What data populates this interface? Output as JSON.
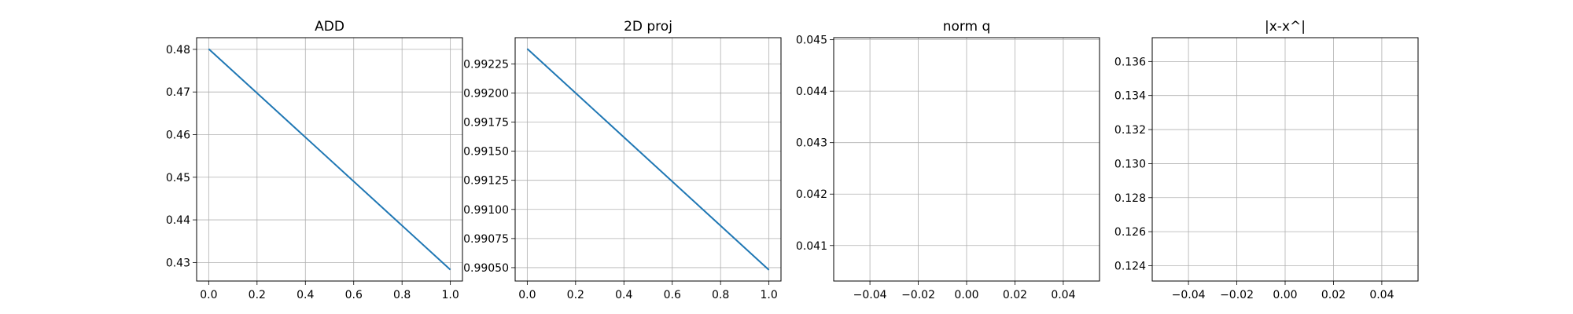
{
  "chart_data": [
    {
      "type": "line",
      "title": "ADD",
      "xlabel": "",
      "ylabel": "",
      "grid": true,
      "color": "#1f77b4",
      "x": [
        0.0,
        1.0
      ],
      "y": [
        0.4801,
        0.4283
      ],
      "xlim": [
        -0.05,
        1.05
      ],
      "ylim": [
        0.42565,
        0.48274
      ],
      "xticks": [
        0.0,
        0.2,
        0.4,
        0.6,
        0.8,
        1.0
      ],
      "xtick_labels": [
        "0.0",
        "0.2",
        "0.4",
        "0.6",
        "0.8",
        "1.0"
      ],
      "yticks": [
        0.43,
        0.44,
        0.45,
        0.46,
        0.47,
        0.48
      ],
      "ytick_labels": [
        "0.43",
        "0.44",
        "0.45",
        "0.46",
        "0.47",
        "0.48"
      ]
    },
    {
      "type": "line",
      "title": "2D proj",
      "xlabel": "",
      "ylabel": "",
      "grid": true,
      "color": "#1f77b4",
      "x": [
        0.0,
        1.0
      ],
      "y": [
        0.99238,
        0.99048
      ],
      "xlim": [
        -0.05,
        1.05
      ],
      "ylim": [
        0.990385,
        0.992475
      ],
      "xticks": [
        0.0,
        0.2,
        0.4,
        0.6,
        0.8,
        1.0
      ],
      "xtick_labels": [
        "0.0",
        "0.2",
        "0.4",
        "0.6",
        "0.8",
        "1.0"
      ],
      "yticks": [
        0.9905,
        0.99075,
        0.991,
        0.99125,
        0.9915,
        0.99175,
        0.992,
        0.99225
      ],
      "ytick_labels": [
        "0.99050",
        "0.99075",
        "0.99100",
        "0.99125",
        "0.99150",
        "0.99175",
        "0.99200",
        "0.99225"
      ]
    },
    {
      "type": "line",
      "title": "norm q",
      "xlabel": "",
      "ylabel": "",
      "grid": true,
      "color": "#1f77b4",
      "x": [],
      "y": [],
      "xlim": [
        -0.055,
        0.055
      ],
      "ylim": [
        0.04031,
        0.04504
      ],
      "xticks": [
        -0.04,
        -0.02,
        0.0,
        0.02,
        0.04
      ],
      "xtick_labels": [
        "−0.04",
        "−0.02",
        "0.00",
        "0.02",
        "0.04"
      ],
      "yticks": [
        0.041,
        0.042,
        0.043,
        0.044,
        0.045
      ],
      "ytick_labels": [
        "0.041",
        "0.042",
        "0.043",
        "0.044",
        "0.045"
      ]
    },
    {
      "type": "line",
      "title": "|x-x^|",
      "xlabel": "",
      "ylabel": "",
      "grid": true,
      "color": "#1f77b4",
      "x": [],
      "y": [],
      "xlim": [
        -0.055,
        0.055
      ],
      "ylim": [
        0.1231,
        0.1374
      ],
      "xticks": [
        -0.04,
        -0.02,
        0.0,
        0.02,
        0.04
      ],
      "xtick_labels": [
        "−0.04",
        "−0.02",
        "0.00",
        "0.02",
        "0.04"
      ],
      "yticks": [
        0.124,
        0.126,
        0.128,
        0.13,
        0.132,
        0.134,
        0.136
      ],
      "ytick_labels": [
        "0.124",
        "0.126",
        "0.128",
        "0.130",
        "0.132",
        "0.134",
        "0.136"
      ]
    }
  ]
}
